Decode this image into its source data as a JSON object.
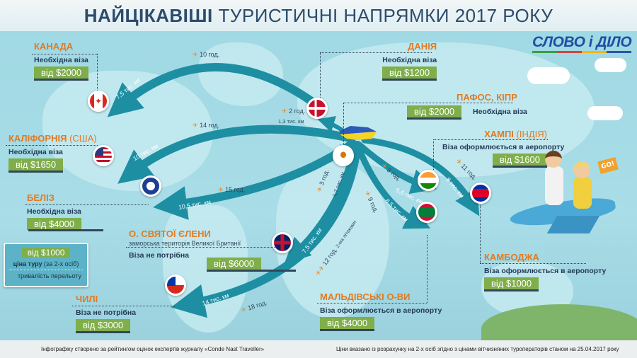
{
  "header": {
    "title_bold": "НАЙЦІКАВІШІ",
    "title_rest": "ТУРИСТИЧНІ НАПРЯМКИ 2017 РОКУ"
  },
  "logo": {
    "text": "СЛОВО і ДІЛО"
  },
  "colors": {
    "route": "#1e8fa3",
    "price_bg": "#7fae4a",
    "place_name": "#e07b22",
    "ocean": "#a6dbe5",
    "ukraine_blue": "#2b5ab8",
    "ukraine_yellow": "#f5d327"
  },
  "destinations": [
    {
      "name": "КАНАДА",
      "name_extra": "",
      "visa": "Необхідна віза",
      "price": "від $2000",
      "flag": "canada-flag",
      "time": "10 год.",
      "distance": "7,5 тис. км"
    },
    {
      "name": "КАЛІФОРНІЯ",
      "name_extra": "(США)",
      "visa": "Необхідна віза",
      "price": "від $1650",
      "flag": "usa-flag",
      "time": "14 год.",
      "distance": "10 тис. км"
    },
    {
      "name": "БЕЛІЗ",
      "name_extra": "",
      "visa": "Необхідна віза",
      "price": "від $4000",
      "flag": "belize-flag",
      "time": "15 год.",
      "distance": "10,5 тис. км"
    },
    {
      "name": "О. СВЯТОЇ ЄЛЕНИ",
      "name_extra": "",
      "note": "заморська територія Великої Британії",
      "visa": "Віза не потрібна",
      "price": "від $6000",
      "flag": "uk-flag",
      "time": "12 год.",
      "time_note": "2-ма літаками",
      "distance": "7,5 тис. км"
    },
    {
      "name": "ЧИЛІ",
      "name_extra": "",
      "visa": "Віза не потрібна",
      "price": "від $3000",
      "flag": "chile-flag",
      "time": "18 год.",
      "distance": "14 тис. км"
    },
    {
      "name": "ДАНІЯ",
      "name_extra": "",
      "visa": "Необхідна віза",
      "price": "від $1200",
      "flag": "denmark-flag",
      "time": "2 год.",
      "distance": "1,3 тис. км"
    },
    {
      "name": "ПАФОС, КІПР",
      "name_extra": "",
      "visa": "Необхідна віза",
      "price": "від $2000",
      "flag": "cyprus-flag",
      "time": "3 год.",
      "distance": "1,7 тис. км"
    },
    {
      "name": "ХАМПІ",
      "name_extra": "(ІНДІЯ)",
      "visa": "Віза оформлюється в аеропорту",
      "price": "від $1600",
      "flag": "india-flag",
      "time": "8 год.",
      "distance": "5,6 тис. км"
    },
    {
      "name": "МАЛЬДІВСЬКІ О-ВИ",
      "name_extra": "",
      "visa": "Віза оформлюється в аеропорту",
      "price": "від $4000",
      "flag": "maldives-flag",
      "time": "9 год.",
      "distance": "6,5 тис. км"
    },
    {
      "name": "КАМБОДЖА",
      "name_extra": "",
      "visa": "Віза оформлюється в аеропорту",
      "price": "від $1000",
      "flag": "cambodia-flag",
      "time": "11 год.",
      "distance": "8 тис. км"
    }
  ],
  "legend": {
    "price": "від $1000",
    "price_label_bold": "ціна туру",
    "price_label_rest": "(за 2-х осіб)",
    "duration": "тривалість перельоту"
  },
  "illustration": {
    "flag_text": "GO!"
  },
  "footer": {
    "left": "Інфографіку створено за рейтингом оцінок експертів журналу «Conde Nast Traveller»",
    "right": "Ціни вказано із розрахунку на 2-х осіб згідно з цінами вітчизняних туроператорів станом на 25.04.2017 року"
  }
}
